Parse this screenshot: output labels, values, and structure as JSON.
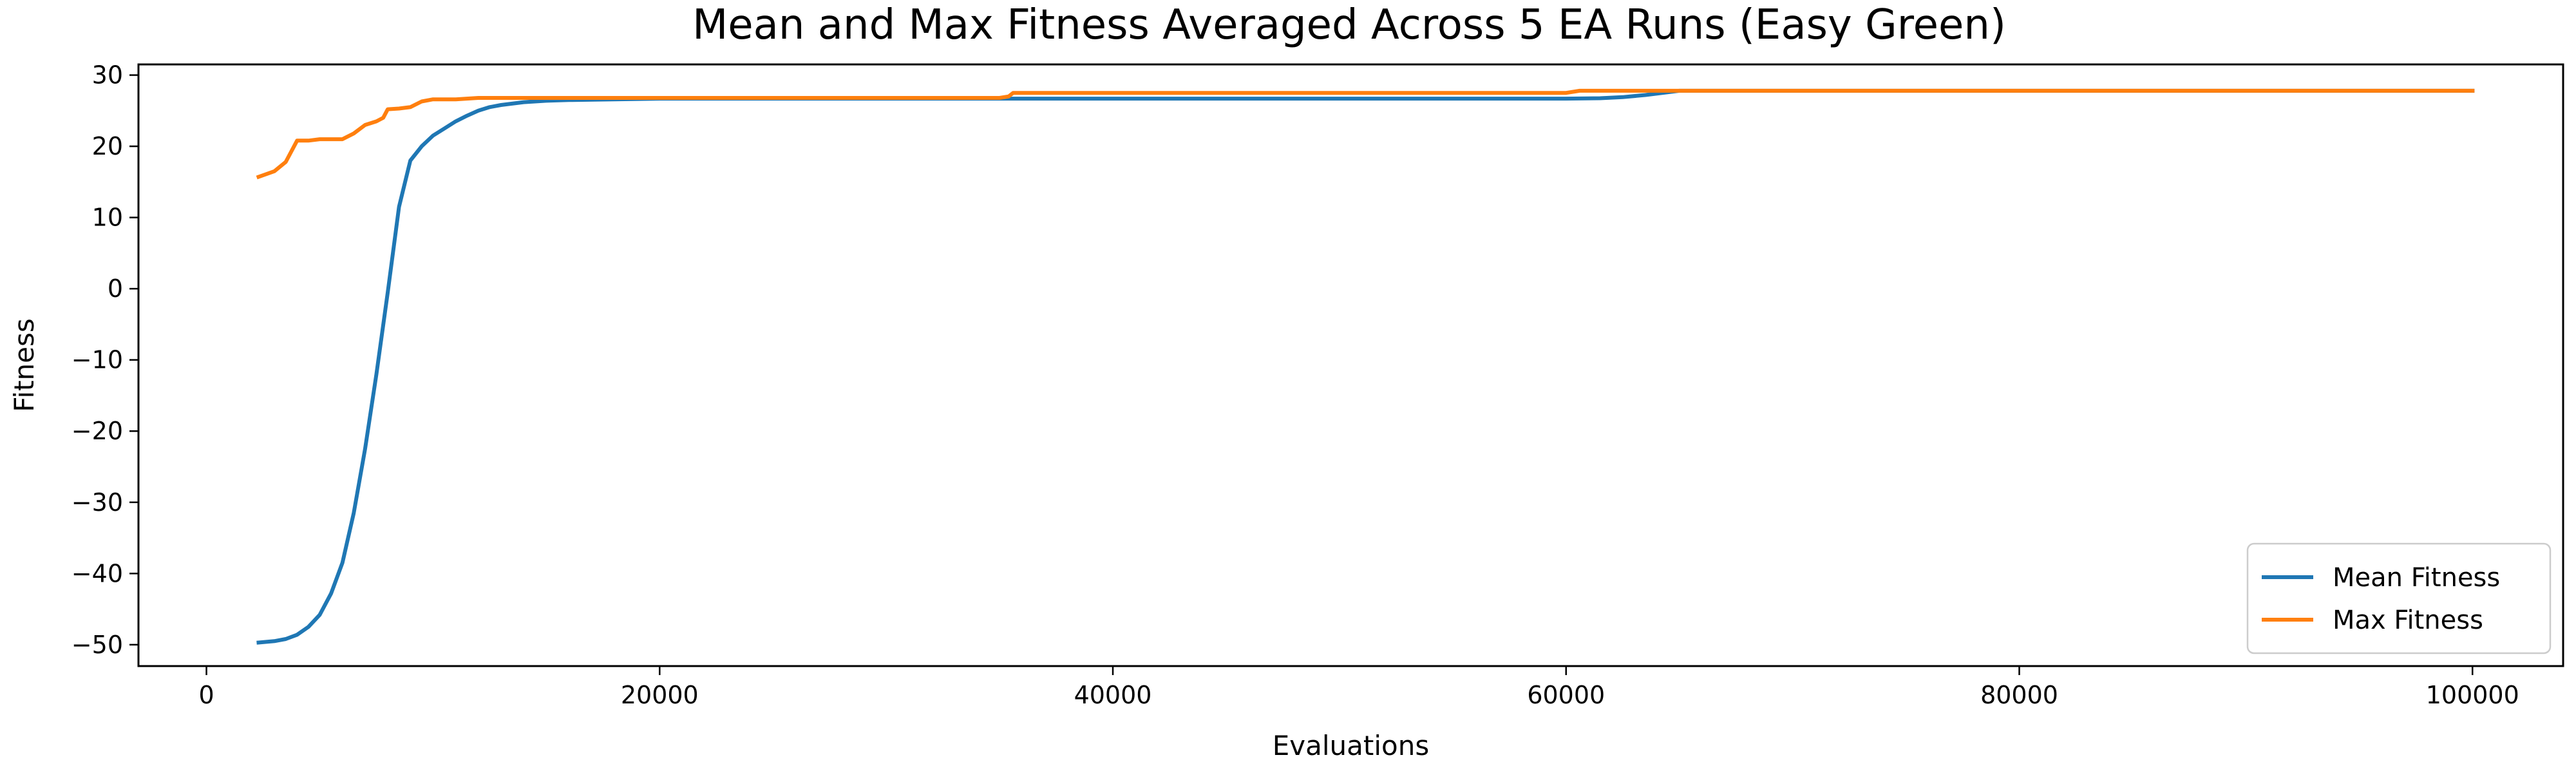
{
  "chart_data": {
    "type": "line",
    "title": "Mean and Max Fitness Averaged Across 5 EA Runs (Easy Green)",
    "xlabel": "Evaluations",
    "ylabel": "Fitness",
    "xlim": [
      -3000,
      104000
    ],
    "ylim": [
      -53,
      31.5
    ],
    "xticks": [
      0,
      20000,
      40000,
      60000,
      80000,
      100000
    ],
    "xtick_labels": [
      "0",
      "20000",
      "40000",
      "60000",
      "80000",
      "100000"
    ],
    "yticks": [
      30,
      20,
      10,
      0,
      -10,
      -20,
      -30,
      -40,
      -50
    ],
    "ytick_labels": [
      "30",
      "20",
      "10",
      "0",
      "−10",
      "−20",
      "−30",
      "−40",
      "−50"
    ],
    "grid": false,
    "legend_position": "lower-right",
    "series": [
      {
        "name": "Mean Fitness",
        "color": "#1f77b4",
        "x": [
          2300,
          3000,
          3500,
          4000,
          4500,
          5000,
          5500,
          6000,
          6500,
          7000,
          7500,
          8000,
          8500,
          9000,
          9500,
          10000,
          10500,
          11000,
          11500,
          12000,
          12500,
          13000,
          14000,
          15000,
          16000,
          18000,
          20000,
          25000,
          30000,
          35000,
          40000,
          45000,
          50000,
          55000,
          60000,
          61500,
          62500,
          63500,
          64500,
          65000,
          70000,
          80000,
          90000,
          100000
        ],
        "y": [
          -49.7,
          -49.5,
          -49.2,
          -48.6,
          -47.5,
          -45.8,
          -42.8,
          -38.5,
          -31.5,
          -22.5,
          -12.0,
          -0.5,
          11.5,
          18.0,
          20.0,
          21.5,
          22.5,
          23.5,
          24.3,
          25.0,
          25.5,
          25.8,
          26.2,
          26.4,
          26.5,
          26.6,
          26.7,
          26.7,
          26.7,
          26.7,
          26.7,
          26.7,
          26.7,
          26.7,
          26.7,
          26.75,
          26.9,
          27.2,
          27.6,
          27.8,
          27.8,
          27.8,
          27.8,
          27.8
        ]
      },
      {
        "name": "Max Fitness",
        "color": "#ff7f0e",
        "x": [
          2300,
          3000,
          3500,
          4000,
          4500,
          5000,
          5500,
          6000,
          6500,
          7000,
          7500,
          7800,
          8000,
          8500,
          9000,
          9500,
          10000,
          11000,
          12000,
          13000,
          15000,
          20000,
          25000,
          30000,
          35000,
          35400,
          35600,
          40000,
          50000,
          60000,
          60400,
          60600,
          65000,
          70000,
          80000,
          90000,
          100000
        ],
        "y": [
          15.7,
          16.5,
          17.8,
          20.8,
          20.8,
          21.0,
          21.0,
          21.0,
          21.8,
          23.0,
          23.5,
          24.0,
          25.2,
          25.3,
          25.5,
          26.3,
          26.6,
          26.6,
          26.8,
          26.8,
          26.8,
          26.8,
          26.8,
          26.8,
          26.8,
          27.0,
          27.5,
          27.5,
          27.5,
          27.5,
          27.7,
          27.8,
          27.8,
          27.8,
          27.8,
          27.8,
          27.8
        ]
      }
    ]
  }
}
